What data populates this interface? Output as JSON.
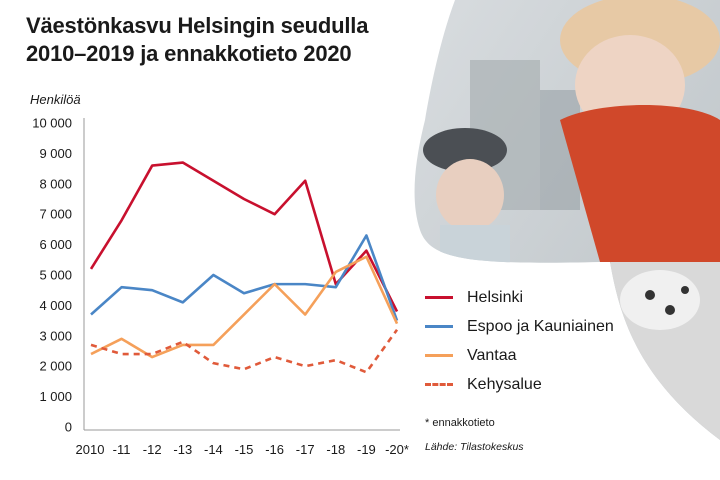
{
  "title_line1": "Väestönkasvu Helsingin seudulla",
  "title_line2": "2010–2019 ja ennakkotieto 2020",
  "note": "* ennakkotieto",
  "source": "Lähde: Tilastokeskus",
  "chart_data": {
    "type": "line",
    "title": "Väestönkasvu Helsingin seudulla 2010–2019 ja ennakkotieto 2020",
    "ylabel": "Henkilöä",
    "xlabel": "",
    "ylim": [
      0,
      10000
    ],
    "yticks": [
      0,
      1000,
      2000,
      3000,
      4000,
      5000,
      6000,
      7000,
      8000,
      9000,
      10000
    ],
    "ytick_labels": [
      "0",
      "1 000",
      "2 000",
      "3 000",
      "4 000",
      "5 000",
      "6 000",
      "7 000",
      "8 000",
      "9 000",
      "10 000"
    ],
    "categories": [
      "2010",
      "-11",
      "-12",
      "-13",
      "-14",
      "-15",
      "-16",
      "-17",
      "-18",
      "-19",
      "-20*"
    ],
    "grid": false,
    "legend_position": "right",
    "series": [
      {
        "name": "Helsinki",
        "color": "#c8102e",
        "dash": false,
        "values": [
          5200,
          6800,
          8600,
          8700,
          8100,
          7500,
          7000,
          8100,
          4700,
          5800,
          3800
        ]
      },
      {
        "name": "Espoo ja Kauniainen",
        "color": "#4a86c6",
        "dash": false,
        "values": [
          3700,
          4600,
          4500,
          4100,
          5000,
          4400,
          4700,
          4700,
          4600,
          6300,
          3500
        ]
      },
      {
        "name": "Vantaa",
        "color": "#f5a05a",
        "dash": false,
        "values": [
          2400,
          2900,
          2300,
          2700,
          2700,
          3700,
          4700,
          3700,
          5100,
          5600,
          3400
        ]
      },
      {
        "name": "Kehysalue",
        "color": "#e05a3a",
        "dash": true,
        "values": [
          2700,
          2400,
          2400,
          2800,
          2100,
          1900,
          2300,
          2000,
          2200,
          1800,
          3200
        ]
      }
    ]
  }
}
